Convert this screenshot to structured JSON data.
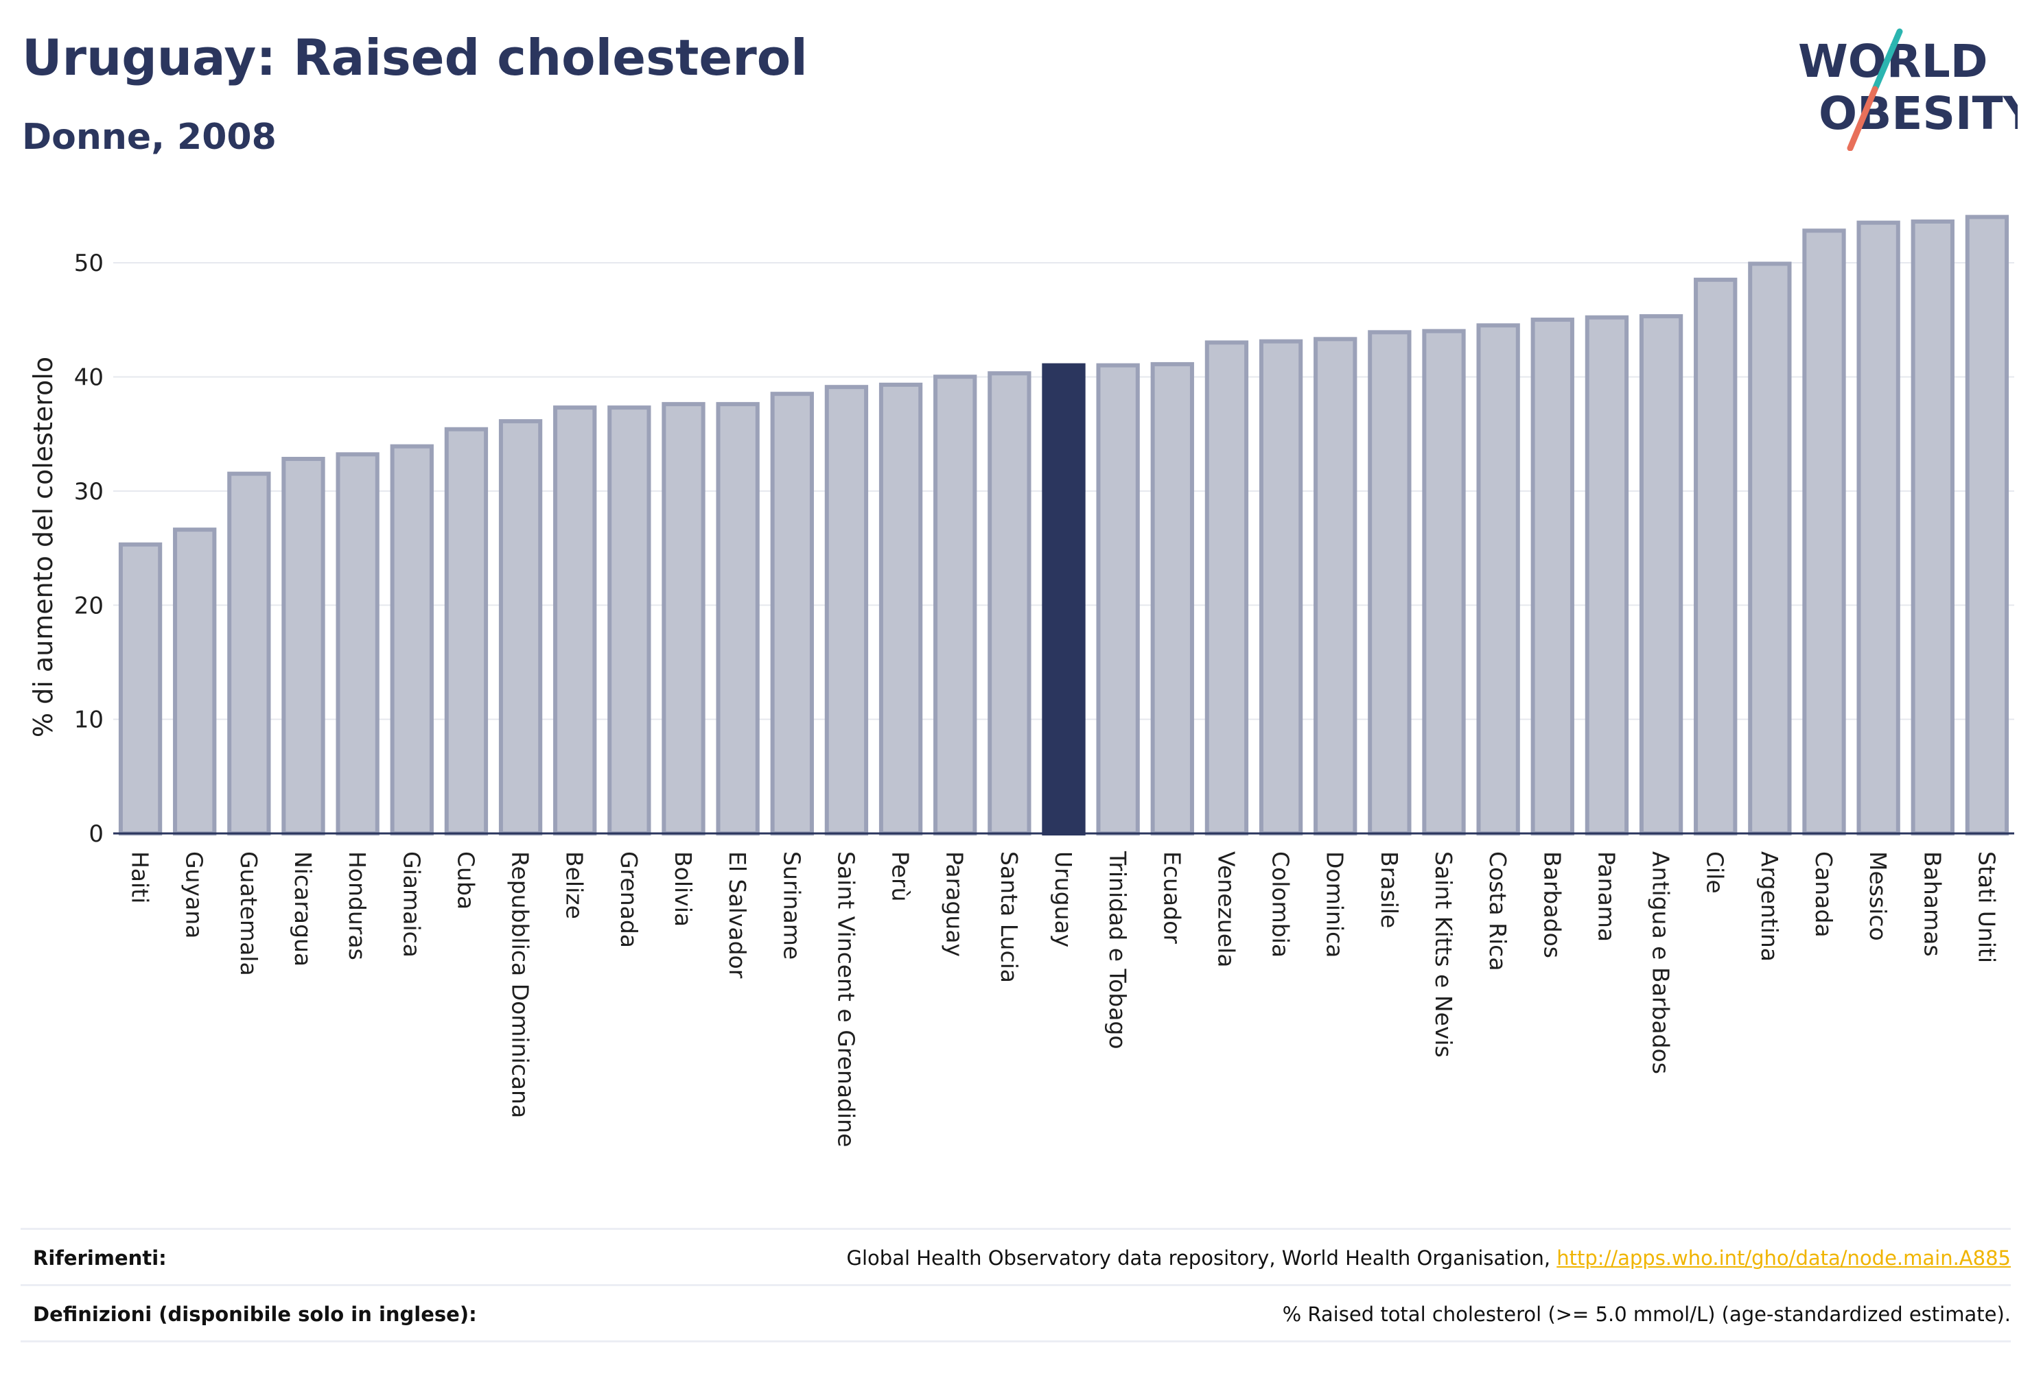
{
  "header": {
    "title": "Uruguay: Raised cholesterol",
    "subtitle": "Donne, 2008"
  },
  "logo": {
    "line1": "WORLD",
    "line2": "OBESITY",
    "colors": {
      "text": "#2b365e",
      "slash_orange": "#e8705a",
      "slash_teal": "#2bb5b0"
    }
  },
  "colors": {
    "bar_fill": "#bfc3d0",
    "bar_stroke": "#9ba1b8",
    "highlight_fill": "#2b365e",
    "axis": "#2b365e",
    "grid": "#e6e8ee"
  },
  "chart_data": {
    "type": "bar",
    "title": "Uruguay: Raised cholesterol",
    "subtitle": "Donne, 2008",
    "ylabel": "% di aumento del colesterolo",
    "xlabel": "",
    "ylim": [
      0,
      55
    ],
    "yticks": [
      0,
      10,
      20,
      30,
      40,
      50
    ],
    "grid": true,
    "highlight": "Uruguay",
    "categories": [
      "Haiti",
      "Guyana",
      "Guatemala",
      "Nicaragua",
      "Honduras",
      "Giamaica",
      "Cuba",
      "Repubblica Dominicana",
      "Belize",
      "Grenada",
      "Bolivia",
      "El Salvador",
      "Suriname",
      "Saint Vincent e Grenadine",
      "Perù",
      "Paraguay",
      "Santa Lucia",
      "Uruguay",
      "Trinidad e Tobago",
      "Ecuador",
      "Venezuela",
      "Colombia",
      "Dominica",
      "Brasile",
      "Saint Kitts e Nevis",
      "Costa Rica",
      "Barbados",
      "Panama",
      "Antigua e Barbados",
      "Cile",
      "Argentina",
      "Canada",
      "Messico",
      "Bahamas",
      "Stati Uniti"
    ],
    "values": [
      25.5,
      26.8,
      31.7,
      33.0,
      33.4,
      34.1,
      35.6,
      36.3,
      37.5,
      37.5,
      37.8,
      37.8,
      38.7,
      39.3,
      39.5,
      40.2,
      40.5,
      41.2,
      41.2,
      41.3,
      43.2,
      43.3,
      43.5,
      44.1,
      44.2,
      44.7,
      45.2,
      45.4,
      45.5,
      48.7,
      50.1,
      53.0,
      53.7,
      53.8,
      54.2
    ]
  },
  "footer": {
    "references_label": "Riferimenti:",
    "references_text": "Global Health Observatory data repository, World Health Organisation, ",
    "references_link": "http://apps.who.int/gho/data/node.main.A885",
    "definitions_label": "Definizioni (disponibile solo in inglese):",
    "definitions_text": "% Raised total cholesterol (>= 5.0 mmol/L) (age-standardized estimate)."
  }
}
